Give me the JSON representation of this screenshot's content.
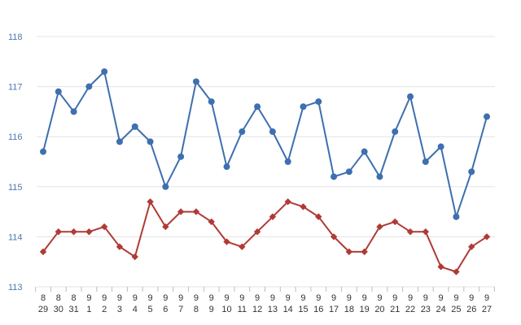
{
  "chart_data": {
    "type": "line",
    "title": "",
    "xlabel": "",
    "ylabel": "",
    "ylim": [
      113,
      118
    ],
    "yticks": [
      113,
      114,
      115,
      116,
      117,
      118
    ],
    "grid": true,
    "legend": "none",
    "categories": [
      {
        "m": "8",
        "d": "29"
      },
      {
        "m": "8",
        "d": "30"
      },
      {
        "m": "8",
        "d": "31"
      },
      {
        "m": "9",
        "d": "1"
      },
      {
        "m": "9",
        "d": "2"
      },
      {
        "m": "9",
        "d": "3"
      },
      {
        "m": "9",
        "d": "4"
      },
      {
        "m": "9",
        "d": "5"
      },
      {
        "m": "9",
        "d": "6"
      },
      {
        "m": "9",
        "d": "7"
      },
      {
        "m": "9",
        "d": "8"
      },
      {
        "m": "9",
        "d": "9"
      },
      {
        "m": "9",
        "d": "10"
      },
      {
        "m": "9",
        "d": "11"
      },
      {
        "m": "9",
        "d": "12"
      },
      {
        "m": "9",
        "d": "13"
      },
      {
        "m": "9",
        "d": "14"
      },
      {
        "m": "9",
        "d": "15"
      },
      {
        "m": "9",
        "d": "16"
      },
      {
        "m": "9",
        "d": "17"
      },
      {
        "m": "9",
        "d": "18"
      },
      {
        "m": "9",
        "d": "19"
      },
      {
        "m": "9",
        "d": "20"
      },
      {
        "m": "9",
        "d": "21"
      },
      {
        "m": "9",
        "d": "22"
      },
      {
        "m": "9",
        "d": "23"
      },
      {
        "m": "9",
        "d": "24"
      },
      {
        "m": "9",
        "d": "25"
      },
      {
        "m": "9",
        "d": "26"
      },
      {
        "m": "9",
        "d": "27"
      }
    ],
    "series": [
      {
        "color": "#3e6faf",
        "marker": "circle",
        "values": [
          115.7,
          116.9,
          116.5,
          117.0,
          117.3,
          115.9,
          116.2,
          115.9,
          115.0,
          115.6,
          117.1,
          116.7,
          115.4,
          116.1,
          116.6,
          116.1,
          115.5,
          116.6,
          116.7,
          115.2,
          115.3,
          115.7,
          115.2,
          116.1,
          116.8,
          115.5,
          115.8,
          114.4,
          115.3,
          116.4
        ]
      },
      {
        "color": "#b03a36",
        "marker": "diamond",
        "values": [
          113.7,
          114.1,
          114.1,
          114.1,
          114.2,
          113.8,
          113.6,
          114.7,
          114.2,
          114.5,
          114.5,
          114.3,
          113.9,
          113.8,
          114.1,
          114.4,
          114.7,
          114.6,
          114.4,
          114.0,
          113.7,
          113.7,
          114.2,
          114.3,
          114.1,
          114.1,
          113.4,
          113.3,
          113.8,
          114.0
        ]
      }
    ]
  }
}
